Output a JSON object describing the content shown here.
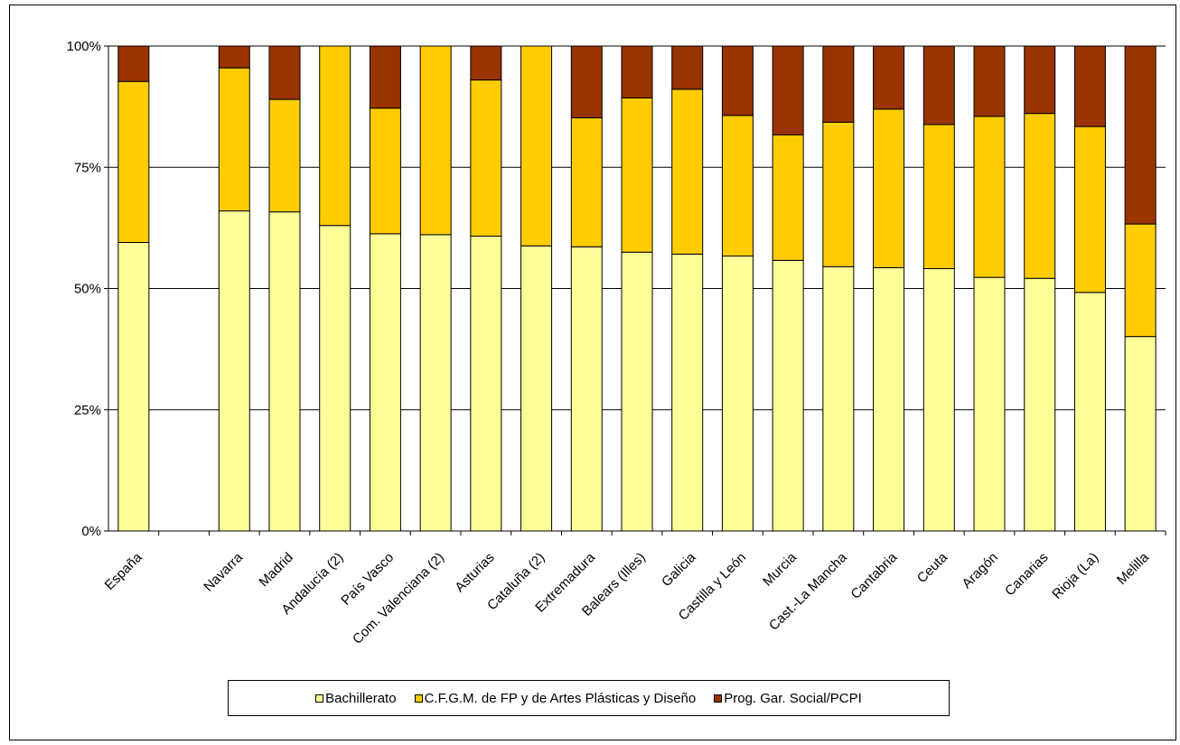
{
  "chart_data": {
    "type": "bar",
    "stacked": true,
    "percent": true,
    "categories": [
      "España",
      "",
      "Navarra",
      "Madrid",
      "Andalucía (2)",
      "País Vasco",
      "Com. Valenciana (2)",
      "Asturias",
      "Cataluña (2)",
      "Extremadura",
      "Balears (Illes)",
      "Galicia",
      "Castilla y León",
      "Murcia",
      "Cast.-La Mancha",
      "Cantabria",
      "Ceuta",
      "Aragón",
      "Canarias",
      "Rioja (La)",
      "Melilla"
    ],
    "series": [
      {
        "name": "Bachillerato",
        "color": "#ffff99",
        "values": [
          59.5,
          null,
          66.0,
          65.8,
          63.0,
          61.3,
          61.1,
          60.8,
          58.8,
          58.6,
          57.5,
          57.1,
          56.7,
          55.8,
          54.5,
          54.3,
          54.1,
          52.3,
          52.1,
          49.2,
          40.1
        ]
      },
      {
        "name": "C.F.G.M. de FP y de Artes Plásticas y Diseño",
        "color": "#ffcc00",
        "values": [
          33.2,
          null,
          29.5,
          23.2,
          37.0,
          25.9,
          38.9,
          32.2,
          41.2,
          26.6,
          31.8,
          34.0,
          29.0,
          25.9,
          29.8,
          32.7,
          29.7,
          33.2,
          34.0,
          34.2,
          23.2
        ]
      },
      {
        "name": "Prog. Gar. Social/PCPI",
        "color": "#993300",
        "values": [
          7.3,
          null,
          4.5,
          11.0,
          0.0,
          12.8,
          0.0,
          7.0,
          0.0,
          14.8,
          10.7,
          8.9,
          14.3,
          18.3,
          15.7,
          13.0,
          16.2,
          14.5,
          13.9,
          16.6,
          36.7
        ]
      }
    ],
    "yticks": [
      "0%",
      "25%",
      "50%",
      "75%",
      "100%"
    ],
    "ylim": [
      0,
      100
    ],
    "grid": true,
    "legend_position": "bottom"
  }
}
